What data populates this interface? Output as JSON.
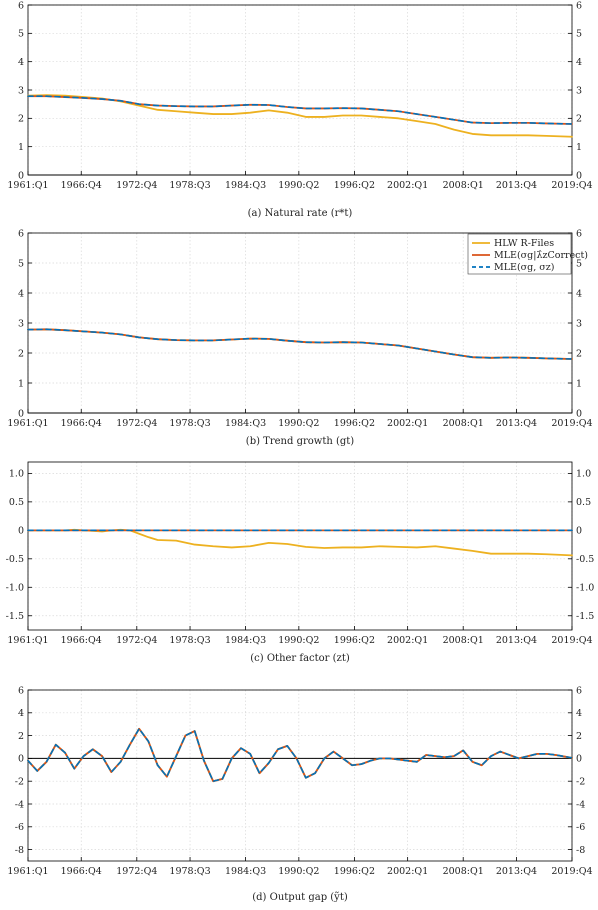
{
  "colors": {
    "hlw": "#EDB120",
    "mle_lambda": "#D95319",
    "mle_sigma": "#0072BD",
    "zero": "#000000",
    "grid": "#d9d9d9"
  },
  "x_tick_labels": [
    "1961:Q1",
    "1966:Q4",
    "1972:Q4",
    "1978:Q3",
    "1984:Q3",
    "1990:Q2",
    "1996:Q2",
    "2002:Q1",
    "2008:Q1",
    "2013:Q4",
    "2019:Q4"
  ],
  "legend": {
    "position": "top-right",
    "entries": [
      {
        "key": "hlw",
        "label": "HLW R-Files",
        "style": "solid"
      },
      {
        "key": "mle_lambda",
        "label": "MLE(σg|λ̂zCorrect)",
        "style": "solid"
      },
      {
        "key": "mle_sigma",
        "label": "MLE(σg, σz)",
        "style": "dashed"
      }
    ]
  },
  "chart_data": [
    {
      "type": "line",
      "caption": "(a) Natural rate (r*t)",
      "x_range": [
        1961.0,
        2019.75
      ],
      "ylim": [
        0,
        6
      ],
      "y_ticks": [
        0,
        1,
        2,
        3,
        4,
        5,
        6
      ],
      "grid": true,
      "zero_line": true,
      "series": [
        {
          "key": "hlw",
          "x": [
            1961,
            1963,
            1965,
            1967,
            1969,
            1971,
            1973,
            1975,
            1977,
            1979,
            1981,
            1983,
            1985,
            1987,
            1989,
            1991,
            1993,
            1995,
            1997,
            1999,
            2001,
            2003,
            2005,
            2007,
            2009,
            2011,
            2013,
            2015,
            2017,
            2019.75
          ],
          "values": [
            2.8,
            2.82,
            2.8,
            2.75,
            2.7,
            2.6,
            2.45,
            2.3,
            2.25,
            2.2,
            2.15,
            2.15,
            2.2,
            2.28,
            2.2,
            2.05,
            2.05,
            2.1,
            2.1,
            2.05,
            2.0,
            1.9,
            1.8,
            1.6,
            1.45,
            1.4,
            1.4,
            1.4,
            1.38,
            1.35
          ]
        },
        {
          "key": "mle_lambda",
          "x": [
            1961,
            1963,
            1965,
            1967,
            1969,
            1971,
            1973,
            1975,
            1977,
            1979,
            1981,
            1983,
            1985,
            1987,
            1989,
            1991,
            1993,
            1995,
            1997,
            1999,
            2001,
            2003,
            2005,
            2007,
            2009,
            2011,
            2013,
            2015,
            2017,
            2019.75
          ],
          "values": [
            2.78,
            2.78,
            2.75,
            2.72,
            2.68,
            2.62,
            2.5,
            2.45,
            2.43,
            2.42,
            2.42,
            2.45,
            2.48,
            2.47,
            2.4,
            2.35,
            2.35,
            2.36,
            2.35,
            2.3,
            2.25,
            2.15,
            2.05,
            1.95,
            1.85,
            1.83,
            1.84,
            1.84,
            1.82,
            1.8
          ]
        },
        {
          "key": "mle_sigma",
          "x": [
            1961,
            1963,
            1965,
            1967,
            1969,
            1971,
            1973,
            1975,
            1977,
            1979,
            1981,
            1983,
            1985,
            1987,
            1989,
            1991,
            1993,
            1995,
            1997,
            1999,
            2001,
            2003,
            2005,
            2007,
            2009,
            2011,
            2013,
            2015,
            2017,
            2019.75
          ],
          "values": [
            2.78,
            2.78,
            2.75,
            2.72,
            2.68,
            2.62,
            2.5,
            2.45,
            2.43,
            2.42,
            2.42,
            2.45,
            2.48,
            2.47,
            2.4,
            2.35,
            2.35,
            2.36,
            2.35,
            2.3,
            2.25,
            2.15,
            2.05,
            1.95,
            1.85,
            1.83,
            1.84,
            1.84,
            1.82,
            1.8
          ]
        }
      ]
    },
    {
      "type": "line",
      "caption": "(b) Trend growth (gt)",
      "x_range": [
        1961.0,
        2019.75
      ],
      "ylim": [
        0,
        6
      ],
      "y_ticks": [
        0,
        1,
        2,
        3,
        4,
        5,
        6
      ],
      "grid": true,
      "zero_line": true,
      "show_legend": true,
      "series": [
        {
          "key": "hlw",
          "x": [
            1961,
            1963,
            1965,
            1967,
            1969,
            1971,
            1973,
            1975,
            1977,
            1979,
            1981,
            1983,
            1985,
            1987,
            1989,
            1991,
            1993,
            1995,
            1997,
            1999,
            2001,
            2003,
            2005,
            2007,
            2009,
            2011,
            2013,
            2015,
            2017,
            2019.75
          ],
          "values": [
            2.78,
            2.79,
            2.76,
            2.72,
            2.68,
            2.62,
            2.52,
            2.46,
            2.43,
            2.42,
            2.42,
            2.45,
            2.48,
            2.47,
            2.41,
            2.36,
            2.35,
            2.36,
            2.35,
            2.3,
            2.25,
            2.15,
            2.05,
            1.95,
            1.86,
            1.84,
            1.85,
            1.84,
            1.82,
            1.8
          ]
        },
        {
          "key": "mle_lambda",
          "x": [
            1961,
            1963,
            1965,
            1967,
            1969,
            1971,
            1973,
            1975,
            1977,
            1979,
            1981,
            1983,
            1985,
            1987,
            1989,
            1991,
            1993,
            1995,
            1997,
            1999,
            2001,
            2003,
            2005,
            2007,
            2009,
            2011,
            2013,
            2015,
            2017,
            2019.75
          ],
          "values": [
            2.78,
            2.79,
            2.76,
            2.72,
            2.68,
            2.62,
            2.52,
            2.46,
            2.43,
            2.42,
            2.42,
            2.45,
            2.48,
            2.47,
            2.41,
            2.36,
            2.35,
            2.36,
            2.35,
            2.3,
            2.25,
            2.15,
            2.05,
            1.95,
            1.86,
            1.84,
            1.85,
            1.84,
            1.82,
            1.8
          ]
        },
        {
          "key": "mle_sigma",
          "x": [
            1961,
            1963,
            1965,
            1967,
            1969,
            1971,
            1973,
            1975,
            1977,
            1979,
            1981,
            1983,
            1985,
            1987,
            1989,
            1991,
            1993,
            1995,
            1997,
            1999,
            2001,
            2003,
            2005,
            2007,
            2009,
            2011,
            2013,
            2015,
            2017,
            2019.75
          ],
          "values": [
            2.78,
            2.79,
            2.76,
            2.72,
            2.68,
            2.62,
            2.52,
            2.46,
            2.43,
            2.42,
            2.42,
            2.45,
            2.48,
            2.47,
            2.41,
            2.36,
            2.35,
            2.36,
            2.35,
            2.3,
            2.25,
            2.15,
            2.05,
            1.95,
            1.86,
            1.84,
            1.85,
            1.84,
            1.82,
            1.8
          ]
        }
      ]
    },
    {
      "type": "line",
      "caption": "(c) Other factor (zt)",
      "x_range": [
        1961.0,
        2019.75
      ],
      "ylim": [
        -1.75,
        1.2
      ],
      "y_ticks": [
        -1.5,
        -1.0,
        -0.5,
        0,
        0.5,
        1.0
      ],
      "y_tick_labels": [
        "-1.5",
        "-1.0",
        "-0.5",
        "0",
        "0.5",
        "1.0"
      ],
      "grid": true,
      "zero_line": true,
      "series": [
        {
          "key": "hlw",
          "x": [
            1961,
            1963,
            1965,
            1966,
            1967,
            1968,
            1969,
            1970,
            1971,
            1972,
            1973,
            1974,
            1975,
            1977,
            1979,
            1981,
            1983,
            1985,
            1987,
            1989,
            1991,
            1993,
            1995,
            1997,
            1999,
            2001,
            2003,
            2005,
            2007,
            2009,
            2011,
            2013,
            2015,
            2017,
            2019.75
          ],
          "values": [
            0,
            0,
            0,
            0.01,
            0.0,
            -0.01,
            -0.02,
            0.0,
            0.01,
            0.0,
            -0.06,
            -0.12,
            -0.17,
            -0.18,
            -0.25,
            -0.28,
            -0.3,
            -0.28,
            -0.22,
            -0.24,
            -0.29,
            -0.31,
            -0.3,
            -0.3,
            -0.28,
            -0.29,
            -0.3,
            -0.28,
            -0.32,
            -0.36,
            -0.41,
            -0.41,
            -0.41,
            -0.42,
            -0.44
          ]
        },
        {
          "key": "mle_lambda",
          "x": [
            1961,
            2019.75
          ],
          "values": [
            0,
            0
          ]
        },
        {
          "key": "mle_sigma",
          "x": [
            1961,
            2019.75
          ],
          "values": [
            0,
            0
          ]
        }
      ]
    },
    {
      "type": "line",
      "caption": "(d) Output gap (ỹt)",
      "x_range": [
        1961.0,
        2019.75
      ],
      "ylim": [
        -9,
        6
      ],
      "y_ticks": [
        -8,
        -6,
        -4,
        -2,
        0,
        2,
        4,
        6
      ],
      "grid": true,
      "zero_line": true,
      "series": [
        {
          "key": "hlw",
          "x": [
            1961,
            1962,
            1963,
            1964,
            1965,
            1966,
            1967,
            1968,
            1969,
            1970,
            1971,
            1972,
            1973,
            1974,
            1975,
            1976,
            1977,
            1978,
            1979,
            1980,
            1981,
            1982,
            1983,
            1984,
            1985,
            1986,
            1987,
            1988,
            1989,
            1990,
            1991,
            1992,
            1993,
            1994,
            1995,
            1996,
            1997,
            1998,
            1999,
            2000,
            2001,
            2002,
            2003,
            2004,
            2005,
            2006,
            2007,
            2008,
            2009,
            2010,
            2011,
            2012,
            2013,
            2014,
            2015,
            2016,
            2017,
            2018,
            2019.75
          ],
          "values": [
            -0.2,
            -1.1,
            -0.3,
            1.2,
            0.5,
            -0.9,
            0.2,
            0.8,
            0.2,
            -1.2,
            -0.3,
            1.2,
            2.6,
            1.5,
            -0.6,
            -1.6,
            0.2,
            2.0,
            2.4,
            -0.2,
            -2.0,
            -1.8,
            0.0,
            0.9,
            0.4,
            -1.3,
            -0.4,
            0.8,
            1.1,
            0.0,
            -1.7,
            -1.3,
            0.0,
            0.6,
            0.0,
            -0.6,
            -0.5,
            -0.2,
            0.0,
            0.0,
            -0.1,
            -0.2,
            -0.3,
            0.3,
            0.2,
            0.1,
            0.2,
            0.7,
            -0.3,
            -0.6,
            0.2,
            0.6,
            0.3,
            0.0,
            0.2,
            0.4,
            0.4,
            0.3,
            0.05
          ]
        },
        {
          "key": "mle_lambda",
          "x": [
            1961,
            1962,
            1963,
            1964,
            1965,
            1966,
            1967,
            1968,
            1969,
            1970,
            1971,
            1972,
            1973,
            1974,
            1975,
            1976,
            1977,
            1978,
            1979,
            1980,
            1981,
            1982,
            1983,
            1984,
            1985,
            1986,
            1987,
            1988,
            1989,
            1990,
            1991,
            1992,
            1993,
            1994,
            1995,
            1996,
            1997,
            1998,
            1999,
            2000,
            2001,
            2002,
            2003,
            2004,
            2005,
            2006,
            2007,
            2008,
            2009,
            2010,
            2011,
            2012,
            2013,
            2014,
            2015,
            2016,
            2017,
            2018,
            2019.75
          ],
          "values": [
            -0.2,
            -1.1,
            -0.3,
            1.2,
            0.5,
            -0.9,
            0.2,
            0.8,
            0.2,
            -1.2,
            -0.3,
            1.2,
            2.6,
            1.5,
            -0.6,
            -1.6,
            0.2,
            2.0,
            2.4,
            -0.2,
            -2.0,
            -1.8,
            0.0,
            0.9,
            0.4,
            -1.3,
            -0.4,
            0.8,
            1.1,
            0.0,
            -1.7,
            -1.3,
            0.0,
            0.6,
            0.0,
            -0.6,
            -0.5,
            -0.2,
            0.0,
            0.0,
            -0.1,
            -0.2,
            -0.3,
            0.3,
            0.2,
            0.1,
            0.2,
            0.7,
            -0.3,
            -0.6,
            0.2,
            0.6,
            0.3,
            0.0,
            0.2,
            0.4,
            0.4,
            0.3,
            0.05
          ]
        },
        {
          "key": "mle_sigma",
          "x": [
            1961,
            1962,
            1963,
            1964,
            1965,
            1966,
            1967,
            1968,
            1969,
            1970,
            1971,
            1972,
            1973,
            1974,
            1975,
            1976,
            1977,
            1978,
            1979,
            1980,
            1981,
            1982,
            1983,
            1984,
            1985,
            1986,
            1987,
            1988,
            1989,
            1990,
            1991,
            1992,
            1993,
            1994,
            1995,
            1996,
            1997,
            1998,
            1999,
            2000,
            2001,
            2002,
            2003,
            2004,
            2005,
            2006,
            2007,
            2008,
            2009,
            2010,
            2011,
            2012,
            2013,
            2014,
            2015,
            2016,
            2017,
            2018,
            2019.75
          ],
          "values": [
            -0.2,
            -1.1,
            -0.3,
            1.2,
            0.5,
            -0.9,
            0.2,
            0.8,
            0.2,
            -1.2,
            -0.3,
            1.2,
            2.6,
            1.5,
            -0.6,
            -1.6,
            0.2,
            2.0,
            2.4,
            -0.2,
            -2.0,
            -1.8,
            0.0,
            0.9,
            0.4,
            -1.3,
            -0.4,
            0.8,
            1.1,
            0.0,
            -1.7,
            -1.3,
            0.0,
            0.6,
            0.0,
            -0.6,
            -0.5,
            -0.2,
            0.0,
            0.0,
            -0.1,
            -0.2,
            -0.3,
            0.3,
            0.2,
            0.1,
            0.2,
            0.7,
            -0.3,
            -0.6,
            0.2,
            0.6,
            0.3,
            0.0,
            0.2,
            0.4,
            0.4,
            0.3,
            0.05
          ]
        }
      ]
    }
  ]
}
